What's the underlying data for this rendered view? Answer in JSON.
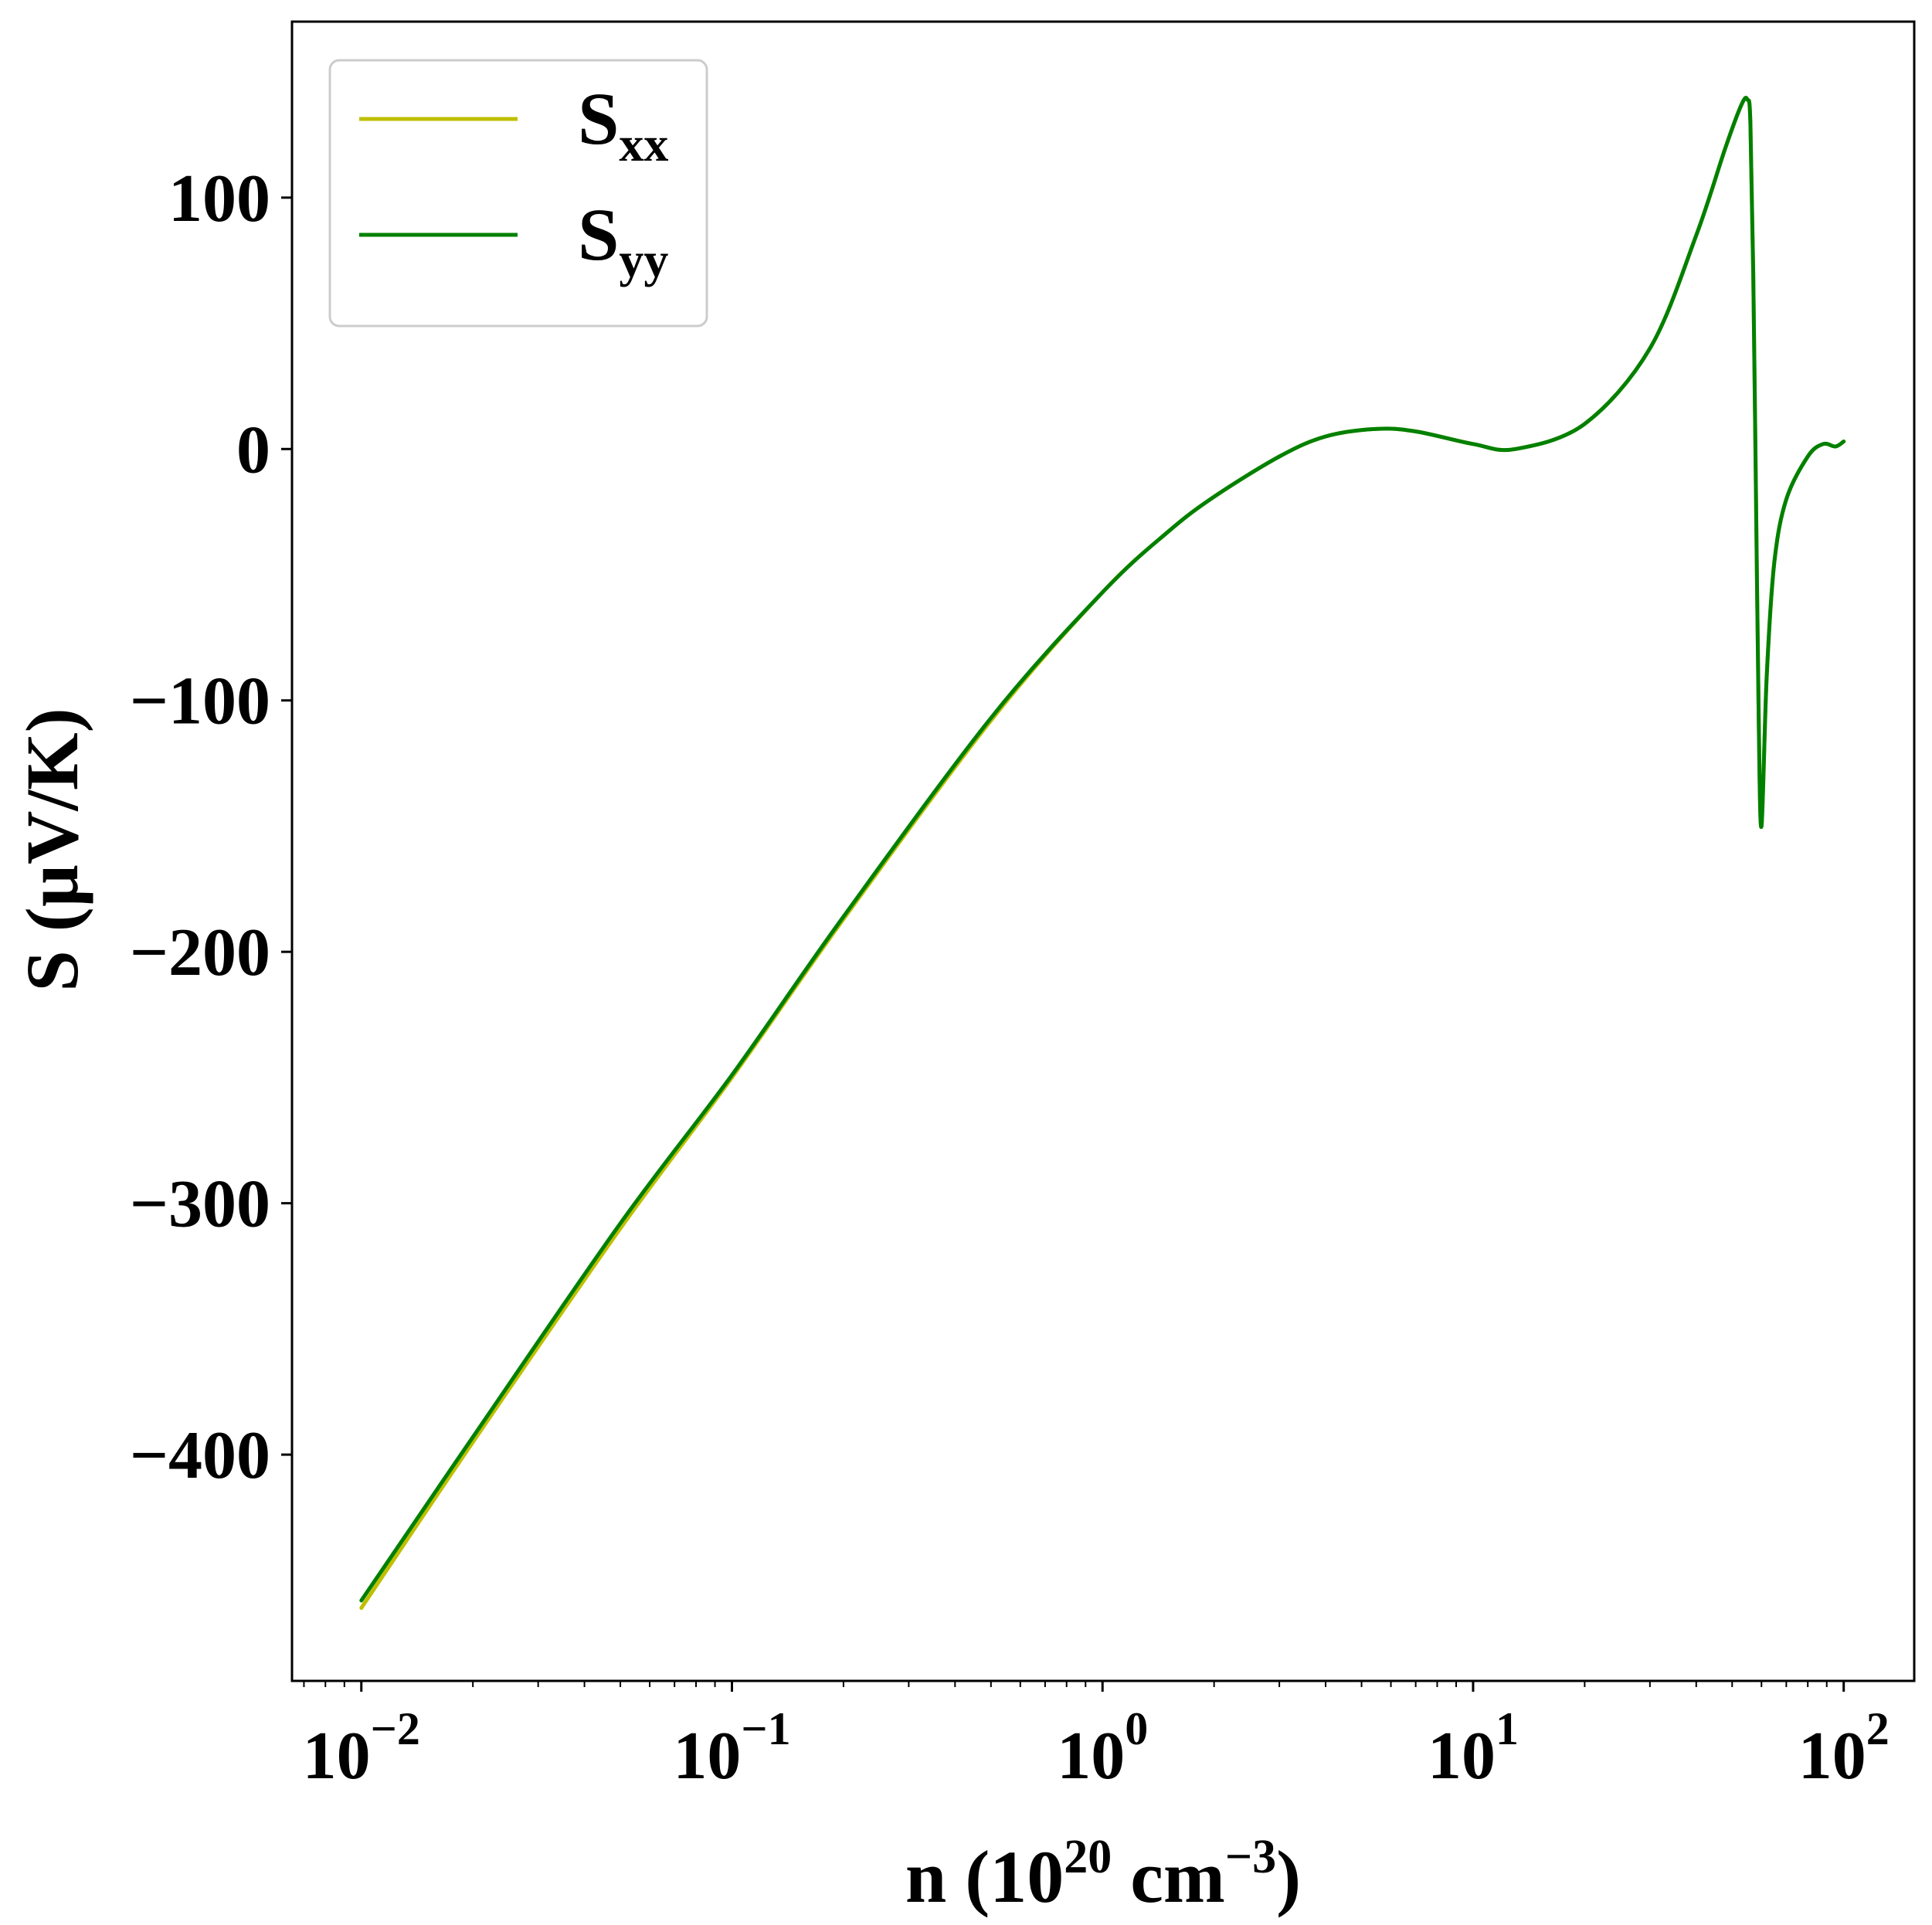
{
  "chart_data": {
    "type": "line",
    "x_scale": "log",
    "xlim": [
      0.0065,
      155
    ],
    "ylim": [
      -490,
      170
    ],
    "xlabel": {
      "prefix": "n (10",
      "exp1": "20",
      "mid": " cm",
      "exp2": "−3",
      "suffix": ")"
    },
    "ylabel": "S (µV/K)",
    "x_ticks": [
      {
        "value": 0.01,
        "base": "10",
        "exp": "−2"
      },
      {
        "value": 0.1,
        "base": "10",
        "exp": "−1"
      },
      {
        "value": 1,
        "base": "10",
        "exp": "0"
      },
      {
        "value": 10,
        "base": "10",
        "exp": "1"
      },
      {
        "value": 100,
        "base": "10",
        "exp": "2"
      }
    ],
    "y_ticks": [
      {
        "value": -400,
        "label": "−400"
      },
      {
        "value": -300,
        "label": "−300"
      },
      {
        "value": -200,
        "label": "−200"
      },
      {
        "value": -100,
        "label": "−100"
      },
      {
        "value": 0,
        "label": "0"
      },
      {
        "value": 100,
        "label": "100"
      }
    ],
    "grid": false,
    "legend": "upper-left",
    "series": [
      {
        "name": "S",
        "name_sub": "xx",
        "color": "#bfbf00",
        "x": [
          0.01,
          0.02,
          0.05,
          0.1,
          0.2,
          0.5,
          1,
          1.5,
          2,
          3,
          4,
          5.5,
          7,
          10,
          13,
          20,
          30,
          40,
          48,
          53,
          55,
          56,
          57,
          58,
          59,
          60,
          62,
          65,
          70,
          80,
          88,
          95,
          100
        ],
        "y": [
          -461,
          -395,
          -310,
          -250,
          -187,
          -108,
          -57,
          -33,
          -19,
          -3,
          5,
          8,
          7,
          2,
          0,
          10,
          40,
          85,
          120,
          137,
          139,
          130,
          70,
          -20,
          -110,
          -150,
          -90,
          -45,
          -20,
          -3,
          2,
          1,
          3
        ]
      },
      {
        "name": "S",
        "name_sub": "yy",
        "color": "#008000",
        "x": [
          0.01,
          0.02,
          0.05,
          0.1,
          0.2,
          0.5,
          1,
          1.5,
          2,
          3,
          4,
          5.5,
          7,
          10,
          13,
          20,
          30,
          40,
          48,
          53,
          55,
          56,
          57,
          58,
          59,
          60,
          62,
          65,
          70,
          80,
          88,
          95,
          100
        ],
        "y": [
          -458,
          -393,
          -308,
          -249,
          -186,
          -107,
          -57,
          -33,
          -19,
          -3,
          5,
          8,
          7,
          2,
          0,
          10,
          40,
          85,
          120,
          137,
          139,
          130,
          70,
          -20,
          -110,
          -150,
          -90,
          -45,
          -20,
          -3,
          2,
          1,
          3
        ]
      }
    ]
  }
}
